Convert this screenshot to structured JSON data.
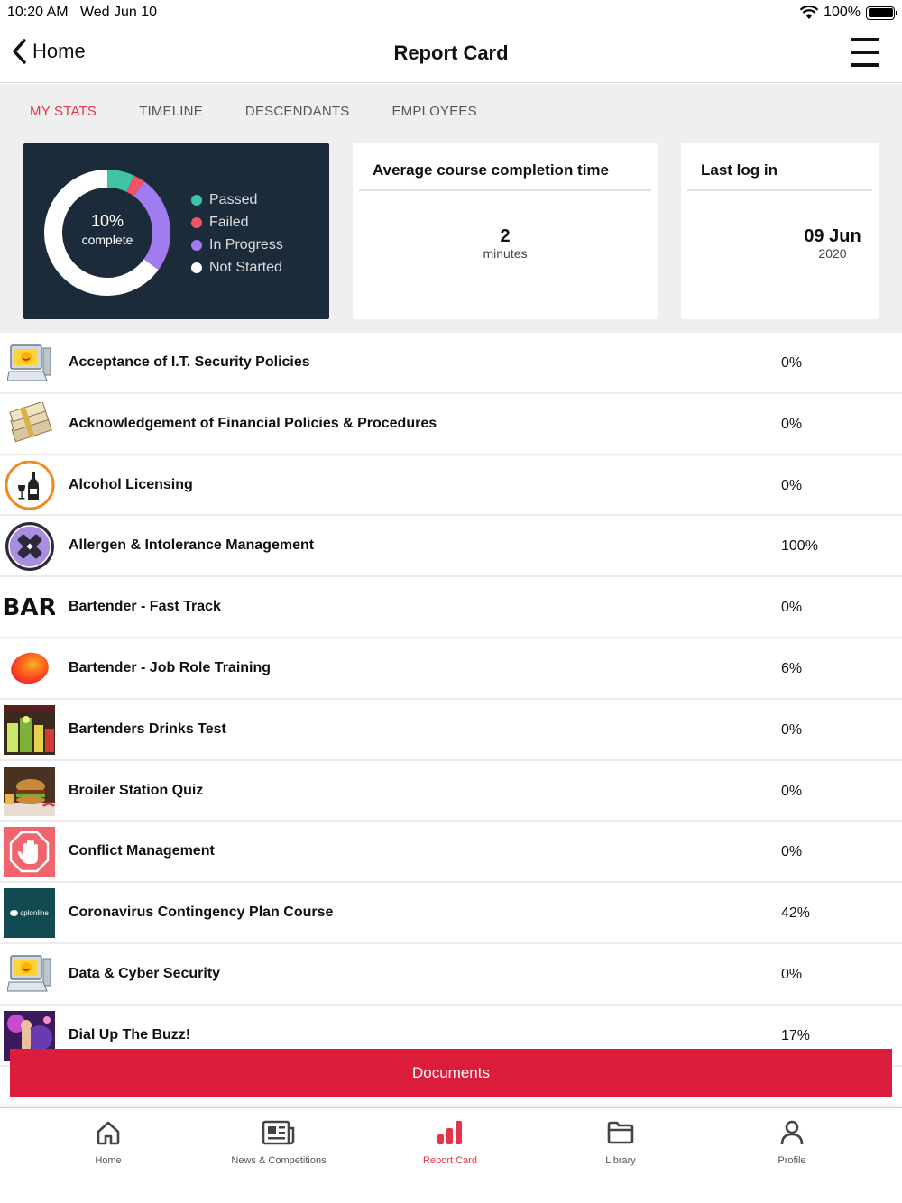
{
  "status_bar": {
    "time": "10:20 AM",
    "date": "Wed Jun 10",
    "battery": "100%"
  },
  "nav": {
    "back_label": "Home",
    "title": "Report Card"
  },
  "tabs": [
    {
      "label": "MY STATS",
      "active": true
    },
    {
      "label": "TIMELINE",
      "active": false
    },
    {
      "label": "DESCENDANTS",
      "active": false
    },
    {
      "label": "EMPLOYEES",
      "active": false
    }
  ],
  "summary": {
    "percent": "10%",
    "percent_label": "complete",
    "legend": [
      {
        "label": "Passed",
        "color": "#3fc5a4",
        "value": 0.07
      },
      {
        "label": "Failed",
        "color": "#f05366",
        "value": 0.03
      },
      {
        "label": "In Progress",
        "color": "#a07cf0",
        "value": 0.25
      },
      {
        "label": "Not Started",
        "color": "#ffffff",
        "value": 0.65
      }
    ]
  },
  "avg_completion": {
    "title": "Average course completion time",
    "value": "2",
    "unit": "minutes"
  },
  "last_login": {
    "title": "Last log in",
    "value": "09 Jun",
    "year": "2020"
  },
  "courses": [
    {
      "name": "Acceptance of I.T. Security Policies",
      "percent": "0%",
      "icon": "computer-smiley-icon"
    },
    {
      "name": "Acknowledgement of Financial Policies & Procedures",
      "percent": "0%",
      "icon": "money-stack-icon"
    },
    {
      "name": "Alcohol Licensing",
      "percent": "0%",
      "icon": "wine-bottle-icon"
    },
    {
      "name": "Allergen & Intolerance Management",
      "percent": "100%",
      "icon": "allergen-cross-icon"
    },
    {
      "name": "Bartender - Fast Track",
      "percent": "0%",
      "icon": "bar-text-icon",
      "icon_text": "BAR"
    },
    {
      "name": "Bartender - Job Role Training",
      "percent": "6%",
      "icon": "orange-blob-icon"
    },
    {
      "name": "Bartenders Drinks Test",
      "percent": "0%",
      "icon": "cocktails-photo-icon"
    },
    {
      "name": "Broiler Station Quiz",
      "percent": "0%",
      "icon": "burger-photo-icon"
    },
    {
      "name": "Conflict Management",
      "percent": "0%",
      "icon": "stop-hand-icon"
    },
    {
      "name": "Coronavirus Contingency Plan Course",
      "percent": "42%",
      "icon": "cplonline-logo-icon",
      "icon_text": "cplonline"
    },
    {
      "name": "Data & Cyber Security",
      "percent": "0%",
      "icon": "computer-smiley-icon"
    },
    {
      "name": "Dial Up The Buzz!",
      "percent": "17%",
      "icon": "party-photo-icon"
    }
  ],
  "documents_label": "Documents",
  "bottom_tabs": [
    {
      "label": "Home",
      "icon": "home-icon",
      "active": false
    },
    {
      "label": "News & Competitions",
      "icon": "news-icon",
      "active": false
    },
    {
      "label": "Report Card",
      "icon": "bar-chart-icon",
      "active": true
    },
    {
      "label": "Library",
      "icon": "folder-icon",
      "active": false
    },
    {
      "label": "Profile",
      "icon": "person-icon",
      "active": false
    }
  ]
}
